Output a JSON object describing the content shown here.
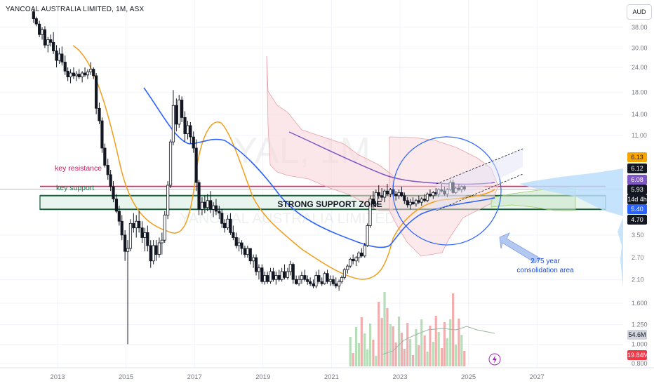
{
  "header": {
    "title": "YANCOAL AUSTRALIA LIMITED, 1M, ASX",
    "currency": "AUD"
  },
  "chart_data": {
    "type": "candlestick",
    "watermark_symbol": "YAL, 1M",
    "watermark_name": "YANCOAL AUSTRALIA LIMITED",
    "y_scale": "log",
    "ylim": [
      0.8,
      45
    ],
    "price_ticks": [
      "38.00",
      "30.00",
      "24.00",
      "18.00",
      "14.00",
      "11.00",
      "3.50",
      "2.70",
      "2.10",
      "1.600",
      "1.250",
      "1.000",
      "0.800"
    ],
    "x_ticks": [
      "2013",
      "2015",
      "2017",
      "2019",
      "2021",
      "2023",
      "2025",
      "2027"
    ],
    "price_labels": [
      {
        "value": "6.13",
        "bg": "#f7a600",
        "fg": "#131722"
      },
      {
        "value": "6.12",
        "bg": "#131722",
        "fg": "#ffffff"
      },
      {
        "value": "6.08",
        "bg": "#7e57c2",
        "fg": "#ffffff"
      },
      {
        "value": "5.93",
        "bg": "#131722",
        "fg": "#ffffff"
      },
      {
        "value": "14d 4h",
        "bg": "#131722",
        "fg": "#ffffff"
      },
      {
        "value": "5.40",
        "bg": "#2962ff",
        "fg": "#ffffff"
      },
      {
        "value": "4.70",
        "bg": "#131722",
        "fg": "#ffffff"
      },
      {
        "value": "54.6M",
        "bg": "#d1d4dc",
        "fg": "#131722"
      },
      {
        "value": "19.84M",
        "bg": "#f23645",
        "fg": "#ffffff"
      }
    ],
    "annotations": {
      "key_resistance": "key resistance",
      "key_support": "key support",
      "support_zone": "STRONG SUPPORT ZONE",
      "consolidation_1": "2.75 year",
      "consolidation_2": "consolidation area"
    },
    "levels": {
      "resistance": 6.12,
      "support": 5.4,
      "zone_top": 5.5,
      "zone_bottom": 4.7
    },
    "candles": [
      [
        "2012.30",
        45.5,
        46.5,
        40.0,
        42.0
      ],
      [
        "2012.38",
        42.0,
        43.0,
        38.5,
        39.5
      ],
      [
        "2012.47",
        39.5,
        41.0,
        34.0,
        35.0
      ],
      [
        "2012.55",
        35.0,
        38.0,
        33.0,
        37.0
      ],
      [
        "2012.63",
        37.0,
        38.5,
        30.0,
        31.0
      ],
      [
        "2012.72",
        31.0,
        34.0,
        28.5,
        33.0
      ],
      [
        "2012.80",
        33.0,
        35.0,
        30.5,
        32.0
      ],
      [
        "2012.88",
        32.0,
        36.0,
        28.0,
        29.0
      ],
      [
        "2012.97",
        29.0,
        31.0,
        24.0,
        26.0
      ],
      [
        "2013.05",
        26.0,
        30.0,
        25.0,
        28.0
      ],
      [
        "2013.13",
        28.0,
        30.5,
        24.5,
        25.5
      ],
      [
        "2013.22",
        25.5,
        27.5,
        22.0,
        23.0
      ],
      [
        "2013.30",
        23.0,
        24.0,
        20.5,
        21.5
      ],
      [
        "2013.38",
        21.5,
        23.5,
        20.0,
        22.5
      ],
      [
        "2013.47",
        22.5,
        24.0,
        21.0,
        21.8
      ],
      [
        "2013.55",
        21.8,
        23.0,
        20.5,
        22.2
      ],
      [
        "2013.63",
        22.2,
        23.5,
        21.0,
        21.5
      ],
      [
        "2013.72",
        21.5,
        23.0,
        20.2,
        22.5
      ],
      [
        "2013.80",
        22.5,
        24.0,
        21.5,
        22.0
      ],
      [
        "2013.88",
        22.0,
        23.5,
        21.0,
        22.8
      ],
      [
        "2013.97",
        22.8,
        25.5,
        22.0,
        23.5
      ],
      [
        "2014.05",
        23.5,
        24.0,
        21.0,
        21.8
      ],
      [
        "2014.13",
        21.8,
        22.5,
        14.0,
        15.0
      ],
      [
        "2014.22",
        15.0,
        16.0,
        12.5,
        13.0
      ],
      [
        "2014.30",
        13.0,
        13.5,
        9.0,
        9.5
      ],
      [
        "2014.38",
        9.5,
        10.0,
        7.6,
        7.8
      ],
      [
        "2014.47",
        7.8,
        8.4,
        6.6,
        7.0
      ],
      [
        "2014.55",
        7.0,
        7.4,
        5.8,
        6.1
      ],
      [
        "2014.63",
        6.1,
        6.5,
        5.1,
        5.3
      ],
      [
        "2014.72",
        5.3,
        5.6,
        4.5,
        4.6
      ],
      [
        "2014.80",
        4.6,
        4.9,
        3.9,
        4.1
      ],
      [
        "2014.88",
        4.1,
        4.4,
        3.3,
        3.5
      ],
      [
        "2014.97",
        3.5,
        3.7,
        2.6,
        2.9
      ],
      [
        "2015.05",
        2.9,
        3.3,
        1.0,
        3.0
      ],
      [
        "2015.13",
        3.0,
        4.2,
        2.9,
        4.0
      ],
      [
        "2015.22",
        4.0,
        4.5,
        3.6,
        3.8
      ],
      [
        "2015.30",
        3.8,
        4.4,
        3.4,
        4.1
      ],
      [
        "2015.38",
        4.1,
        4.6,
        3.6,
        3.8
      ],
      [
        "2015.47",
        3.8,
        4.1,
        3.2,
        3.4
      ],
      [
        "2015.55",
        3.4,
        3.8,
        2.9,
        3.6
      ],
      [
        "2015.63",
        3.6,
        3.9,
        2.9,
        3.1
      ],
      [
        "2015.72",
        3.1,
        3.3,
        2.4,
        2.6
      ],
      [
        "2015.80",
        2.6,
        3.3,
        2.5,
        3.1
      ],
      [
        "2015.88",
        3.1,
        3.3,
        2.6,
        2.8
      ],
      [
        "2015.97",
        2.8,
        3.4,
        2.7,
        3.2
      ],
      [
        "2016.05",
        3.2,
        3.6,
        2.8,
        3.3
      ],
      [
        "2016.13",
        3.3,
        4.6,
        3.2,
        4.4
      ],
      [
        "2016.22",
        4.4,
        6.5,
        4.2,
        6.2
      ],
      [
        "2016.30",
        6.2,
        10.5,
        6.0,
        10.2
      ],
      [
        "2016.38",
        10.2,
        18.5,
        9.8,
        15.5
      ],
      [
        "2016.47",
        15.5,
        16.8,
        11.5,
        12.5
      ],
      [
        "2016.55",
        12.5,
        17.5,
        12.0,
        16.5
      ],
      [
        "2016.63",
        16.5,
        17.2,
        12.8,
        13.5
      ],
      [
        "2016.72",
        13.5,
        14.5,
        10.2,
        11.2
      ],
      [
        "2016.80",
        11.2,
        13.0,
        10.5,
        12.3
      ],
      [
        "2016.88",
        12.3,
        12.8,
        10.0,
        10.8
      ],
      [
        "2016.97",
        10.8,
        11.5,
        9.0,
        9.5
      ],
      [
        "2017.05",
        9.5,
        10.5,
        5.8,
        6.4
      ],
      [
        "2017.13",
        6.4,
        6.6,
        4.4,
        4.7
      ],
      [
        "2017.22",
        4.7,
        5.4,
        4.4,
        5.1
      ],
      [
        "2017.30",
        5.1,
        5.5,
        4.5,
        4.8
      ],
      [
        "2017.38",
        4.8,
        5.6,
        4.6,
        5.2
      ],
      [
        "2017.47",
        5.2,
        5.8,
        4.5,
        4.7
      ],
      [
        "2017.55",
        4.7,
        5.1,
        4.3,
        4.9
      ],
      [
        "2017.63",
        4.9,
        5.3,
        4.4,
        4.6
      ],
      [
        "2017.72",
        4.6,
        4.9,
        4.2,
        4.5
      ],
      [
        "2017.80",
        4.5,
        4.7,
        3.8,
        4.0
      ],
      [
        "2017.88",
        4.0,
        4.2,
        3.6,
        3.8
      ],
      [
        "2017.97",
        3.8,
        4.4,
        3.7,
        4.2
      ],
      [
        "2018.05",
        4.2,
        4.5,
        3.5,
        3.6
      ],
      [
        "2018.13",
        3.6,
        3.9,
        3.3,
        3.4
      ],
      [
        "2018.22",
        3.4,
        3.6,
        3.0,
        3.1
      ],
      [
        "2018.30",
        3.1,
        3.4,
        2.9,
        3.2
      ],
      [
        "2018.38",
        3.2,
        3.3,
        2.8,
        3.0
      ],
      [
        "2018.47",
        3.0,
        3.1,
        2.7,
        2.8
      ],
      [
        "2018.55",
        2.8,
        3.1,
        2.7,
        3.0
      ],
      [
        "2018.63",
        3.0,
        3.0,
        2.5,
        2.6
      ],
      [
        "2018.72",
        2.6,
        2.8,
        2.4,
        2.7
      ],
      [
        "2018.80",
        2.7,
        2.8,
        2.2,
        2.3
      ],
      [
        "2018.88",
        2.3,
        2.5,
        2.1,
        2.4
      ],
      [
        "2018.97",
        2.4,
        2.5,
        2.0,
        2.05
      ],
      [
        "2019.05",
        2.05,
        2.3,
        1.98,
        2.2
      ],
      [
        "2019.13",
        2.2,
        2.3,
        2.0,
        2.05
      ],
      [
        "2019.22",
        2.05,
        2.4,
        2.0,
        2.3
      ],
      [
        "2019.30",
        2.3,
        2.4,
        2.05,
        2.1
      ],
      [
        "2019.38",
        2.1,
        2.3,
        1.98,
        2.2
      ],
      [
        "2019.47",
        2.2,
        2.35,
        2.05,
        2.1
      ],
      [
        "2019.55",
        2.1,
        2.4,
        2.05,
        2.3
      ],
      [
        "2019.63",
        2.3,
        2.5,
        2.1,
        2.15
      ],
      [
        "2019.72",
        2.15,
        2.4,
        2.1,
        2.3
      ],
      [
        "2019.80",
        2.3,
        2.6,
        2.2,
        2.5
      ],
      [
        "2019.88",
        2.5,
        2.55,
        2.0,
        2.1
      ],
      [
        "2019.97",
        2.1,
        2.2,
        1.98,
        2.0
      ],
      [
        "2020.05",
        2.0,
        2.2,
        1.95,
        2.1
      ],
      [
        "2020.13",
        2.1,
        2.3,
        2.0,
        2.2
      ],
      [
        "2020.22",
        2.2,
        2.35,
        2.05,
        2.1
      ],
      [
        "2020.30",
        2.1,
        2.2,
        1.98,
        2.05
      ],
      [
        "2020.38",
        2.05,
        2.15,
        1.95,
        2.0
      ],
      [
        "2020.47",
        2.0,
        2.1,
        1.9,
        1.95
      ],
      [
        "2020.55",
        1.95,
        2.3,
        1.9,
        2.2
      ],
      [
        "2020.63",
        2.2,
        2.35,
        2.0,
        2.05
      ],
      [
        "2020.72",
        2.05,
        2.15,
        1.95,
        2.0
      ],
      [
        "2020.80",
        2.0,
        2.3,
        1.98,
        2.25
      ],
      [
        "2020.88",
        2.25,
        2.35,
        2.0,
        2.05
      ],
      [
        "2020.97",
        2.05,
        2.2,
        1.95,
        2.1
      ],
      [
        "2021.05",
        2.1,
        2.2,
        1.95,
        2.0
      ],
      [
        "2021.13",
        2.0,
        2.15,
        1.9,
        1.95
      ],
      [
        "2021.22",
        1.95,
        2.1,
        1.85,
        2.05
      ],
      [
        "2021.30",
        2.05,
        2.2,
        2.0,
        2.15
      ],
      [
        "2021.38",
        2.15,
        2.4,
        2.1,
        2.35
      ],
      [
        "2021.47",
        2.35,
        2.5,
        2.25,
        2.45
      ],
      [
        "2021.55",
        2.45,
        2.7,
        2.4,
        2.65
      ],
      [
        "2021.63",
        2.65,
        2.8,
        2.5,
        2.6
      ],
      [
        "2021.72",
        2.6,
        2.75,
        2.45,
        2.7
      ],
      [
        "2021.80",
        2.7,
        2.9,
        2.55,
        2.85
      ],
      [
        "2021.88",
        2.85,
        3.0,
        2.7,
        2.75
      ],
      [
        "2021.97",
        2.75,
        3.2,
        2.7,
        3.1
      ],
      [
        "2022.05",
        3.1,
        4.0,
        3.05,
        3.9
      ],
      [
        "2022.13",
        3.9,
        5.5,
        3.8,
        5.3
      ],
      [
        "2022.22",
        5.3,
        5.8,
        4.8,
        5.0
      ],
      [
        "2022.30",
        5.0,
        5.9,
        4.9,
        5.7
      ],
      [
        "2022.38",
        5.7,
        6.2,
        5.3,
        5.5
      ],
      [
        "2022.47",
        5.5,
        6.0,
        5.2,
        5.4
      ],
      [
        "2022.55",
        5.4,
        5.9,
        5.1,
        5.8
      ],
      [
        "2022.63",
        5.8,
        6.3,
        5.5,
        5.6
      ],
      [
        "2022.72",
        5.6,
        6.0,
        5.4,
        5.9
      ],
      [
        "2022.80",
        5.9,
        6.2,
        5.5,
        5.6
      ],
      [
        "2022.88",
        5.6,
        5.8,
        5.2,
        5.5
      ],
      [
        "2022.97",
        5.5,
        5.9,
        5.3,
        5.7
      ],
      [
        "2023.05",
        5.7,
        6.1,
        5.4,
        5.5
      ],
      [
        "2023.13",
        5.5,
        5.7,
        5.0,
        5.2
      ],
      [
        "2023.22",
        5.2,
        5.4,
        4.8,
        4.95
      ],
      [
        "2023.30",
        4.95,
        5.3,
        4.7,
        5.1
      ],
      [
        "2023.38",
        5.1,
        5.4,
        4.95,
        5.0
      ],
      [
        "2023.47",
        5.0,
        5.3,
        4.85,
        5.2
      ],
      [
        "2023.55",
        5.2,
        5.5,
        5.0,
        5.1
      ],
      [
        "2023.63",
        5.1,
        5.4,
        4.9,
        5.3
      ],
      [
        "2023.72",
        5.3,
        5.6,
        5.1,
        5.2
      ],
      [
        "2023.80",
        5.2,
        5.7,
        5.1,
        5.6
      ],
      [
        "2023.88",
        5.6,
        5.9,
        5.4,
        5.5
      ],
      [
        "2023.97",
        5.5,
        5.8,
        5.3,
        5.7
      ],
      [
        "2024.05",
        5.7,
        6.0,
        5.5,
        5.6
      ],
      [
        "2024.13",
        5.6,
        6.0,
        5.4,
        5.9
      ],
      [
        "2024.22",
        5.9,
        6.3,
        5.7,
        5.8
      ],
      [
        "2024.30",
        5.8,
        6.1,
        5.5,
        5.6
      ],
      [
        "2024.38",
        5.6,
        6.0,
        5.4,
        5.9
      ],
      [
        "2024.47",
        5.9,
        6.6,
        5.8,
        6.4
      ],
      [
        "2024.55",
        6.4,
        6.6,
        5.6,
        5.7
      ],
      [
        "2024.63",
        5.7,
        6.1,
        5.6,
        6.0
      ],
      [
        "2024.72",
        6.0,
        6.3,
        5.8,
        5.9
      ],
      [
        "2024.80",
        5.9,
        6.2,
        5.7,
        6.1
      ],
      [
        "2024.88",
        6.1,
        6.2,
        5.8,
        5.93
      ]
    ]
  }
}
